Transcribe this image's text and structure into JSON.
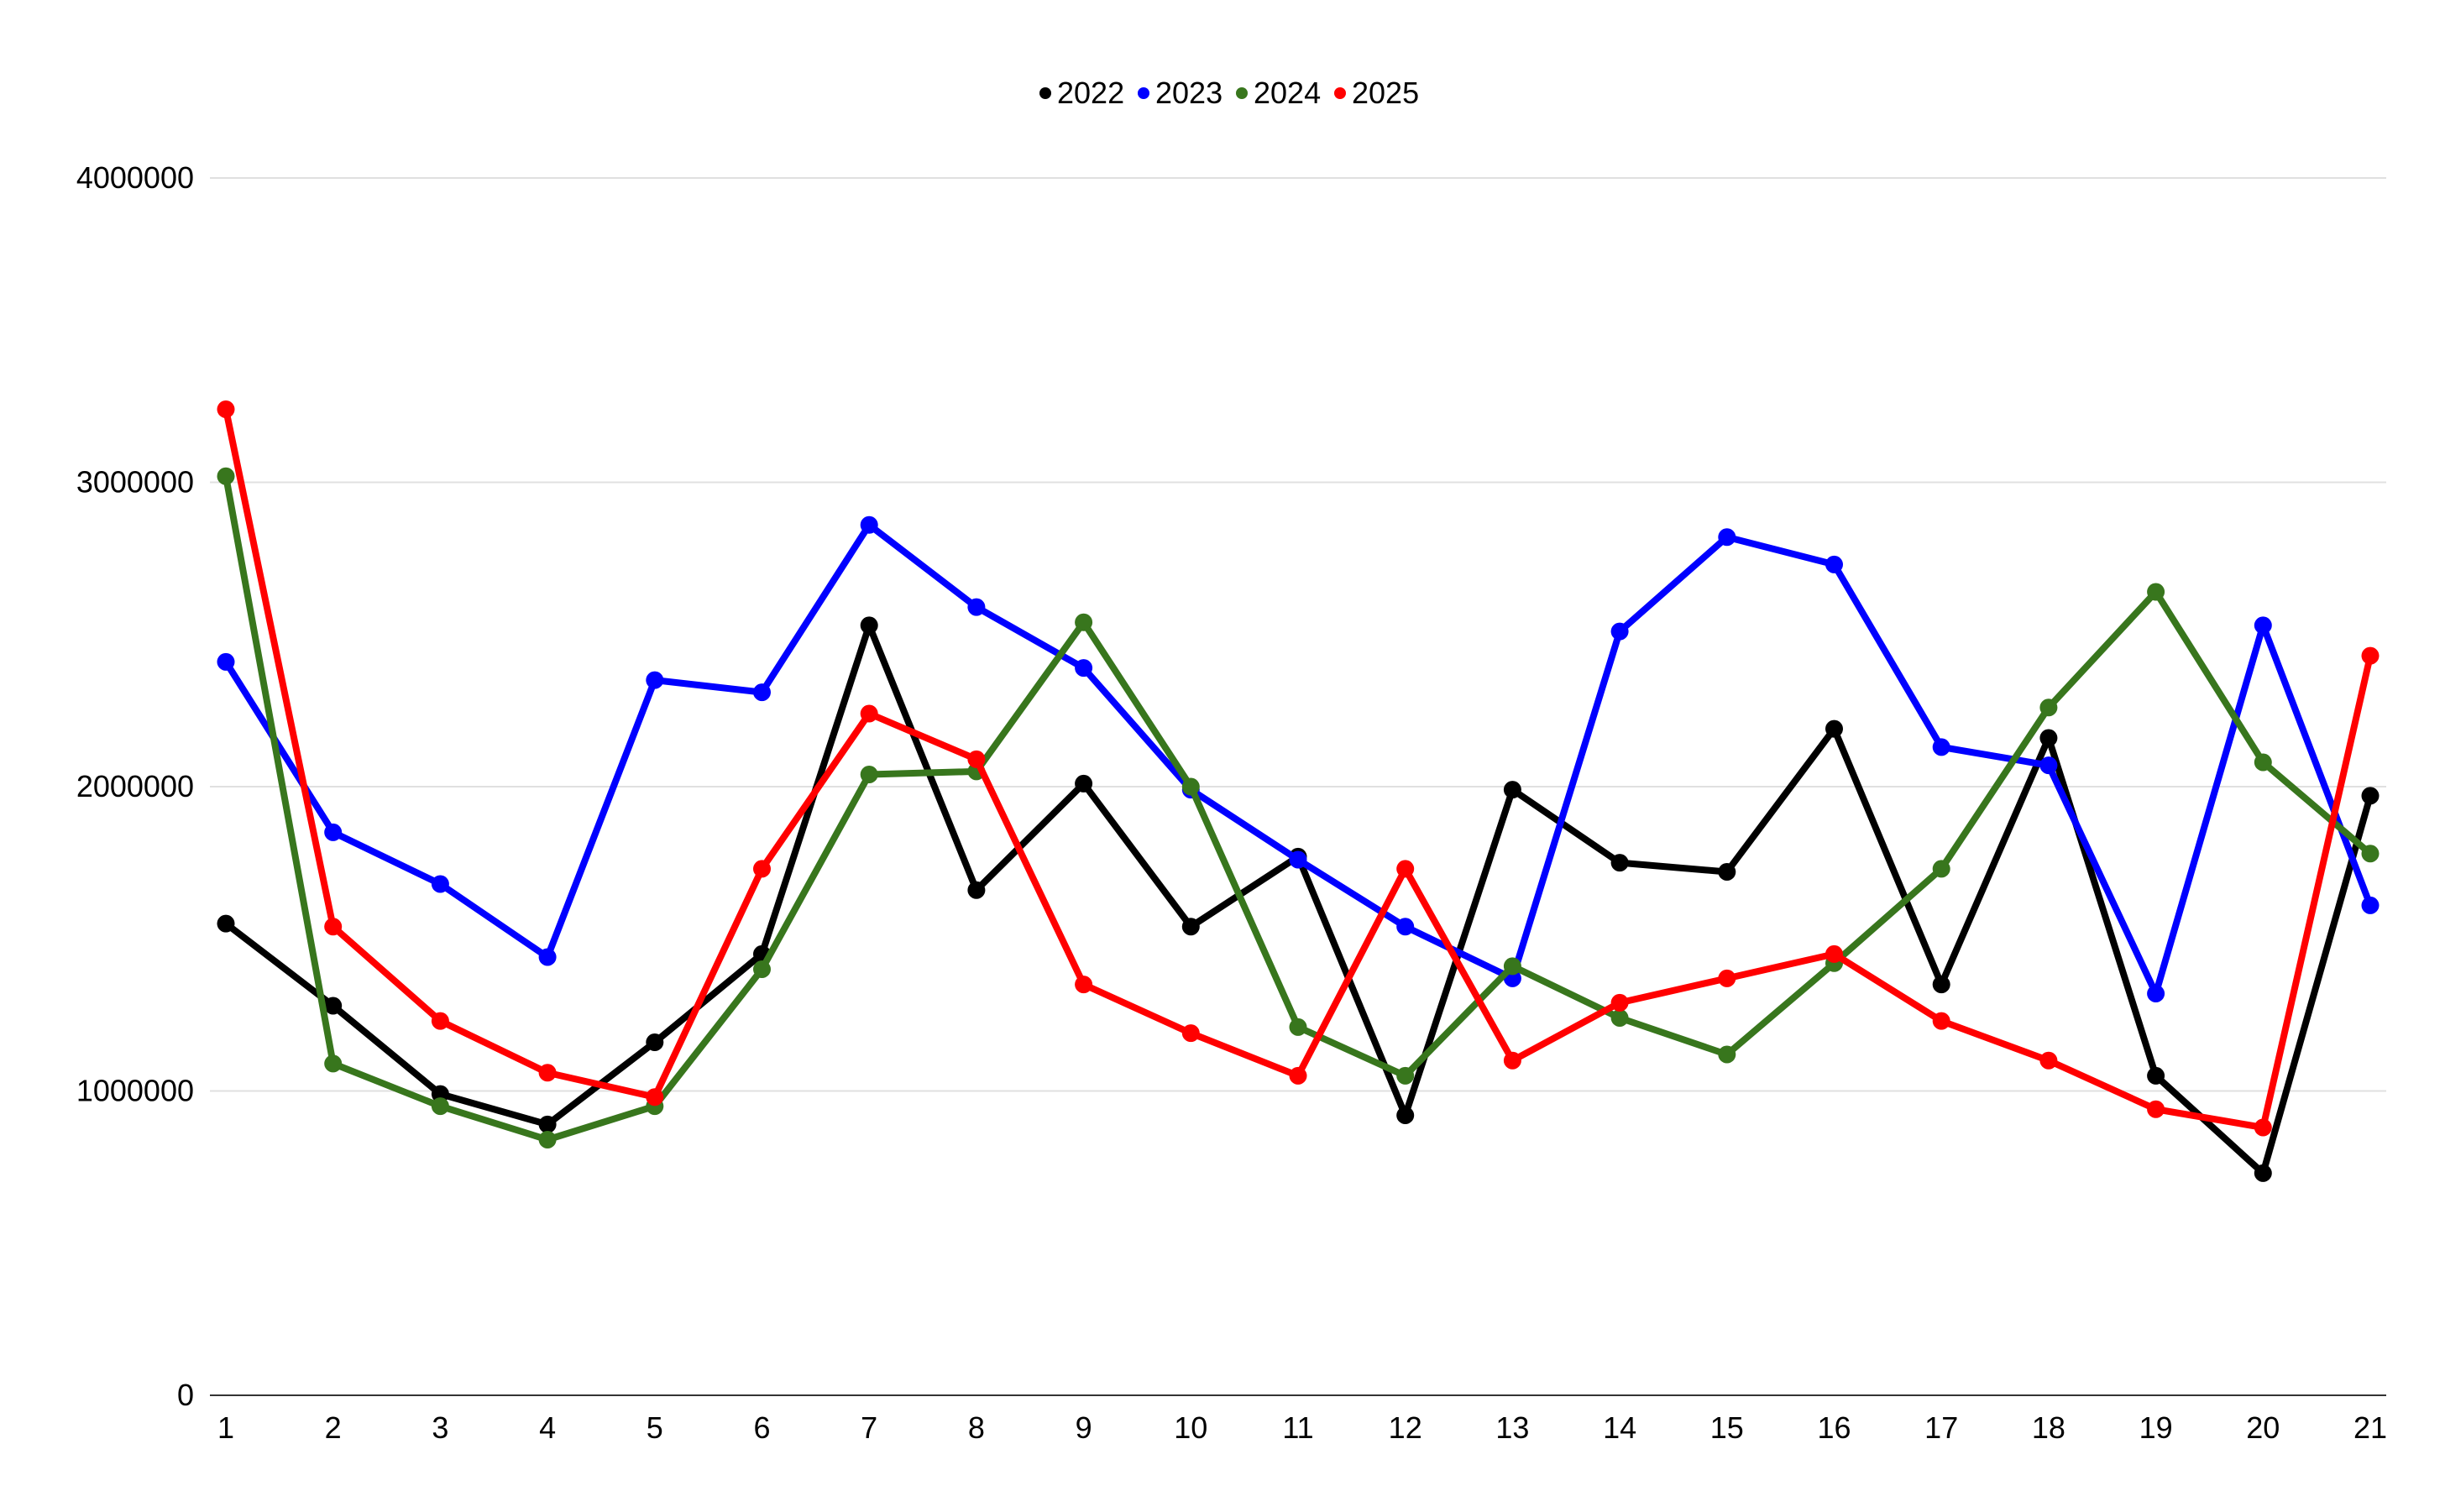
{
  "chart_data": {
    "type": "line",
    "title": "",
    "xlabel": "",
    "ylabel": "",
    "x": [
      "1",
      "2",
      "3",
      "4",
      "5",
      "6",
      "7",
      "8",
      "9",
      "10",
      "11",
      "12",
      "13",
      "14",
      "15",
      "16",
      "17",
      "18",
      "19",
      "20",
      "21"
    ],
    "ylim": [
      0,
      4000000
    ],
    "yticks": [
      "0",
      "1000000",
      "2000000",
      "3000000",
      "4000000"
    ],
    "grid": true,
    "legend_position": "top-center",
    "series": [
      {
        "name": "2022",
        "color": "#000000",
        "values": [
          1550000,
          1280000,
          990000,
          890000,
          1160000,
          1450000,
          2530000,
          1660000,
          2010000,
          1540000,
          1770000,
          920000,
          1990000,
          1750000,
          1720000,
          2190000,
          1350000,
          2160000,
          1050000,
          730000,
          1970000
        ]
      },
      {
        "name": "2023",
        "color": "#0000ff",
        "values": [
          2410000,
          1850000,
          1680000,
          1440000,
          2350000,
          2310000,
          2860000,
          2590000,
          2390000,
          1990000,
          1760000,
          1540000,
          1370000,
          2510000,
          2820000,
          2730000,
          2130000,
          2070000,
          1320000,
          2530000,
          1610000
        ]
      },
      {
        "name": "2024",
        "color": "#38761d",
        "values": [
          3020000,
          1090000,
          950000,
          840000,
          950000,
          1400000,
          2040000,
          2050000,
          2540000,
          2000000,
          1210000,
          1050000,
          1410000,
          1240000,
          1120000,
          1420000,
          1730000,
          2260000,
          2640000,
          2080000,
          1780000
        ]
      },
      {
        "name": "2025",
        "color": "#ff0000",
        "values": [
          3240000,
          1540000,
          1230000,
          1060000,
          980000,
          1730000,
          2240000,
          2090000,
          1350000,
          1190000,
          1050000,
          1730000,
          1100000,
          1290000,
          1370000,
          1450000,
          1230000,
          1100000,
          940000,
          880000,
          2430000
        ]
      }
    ]
  }
}
